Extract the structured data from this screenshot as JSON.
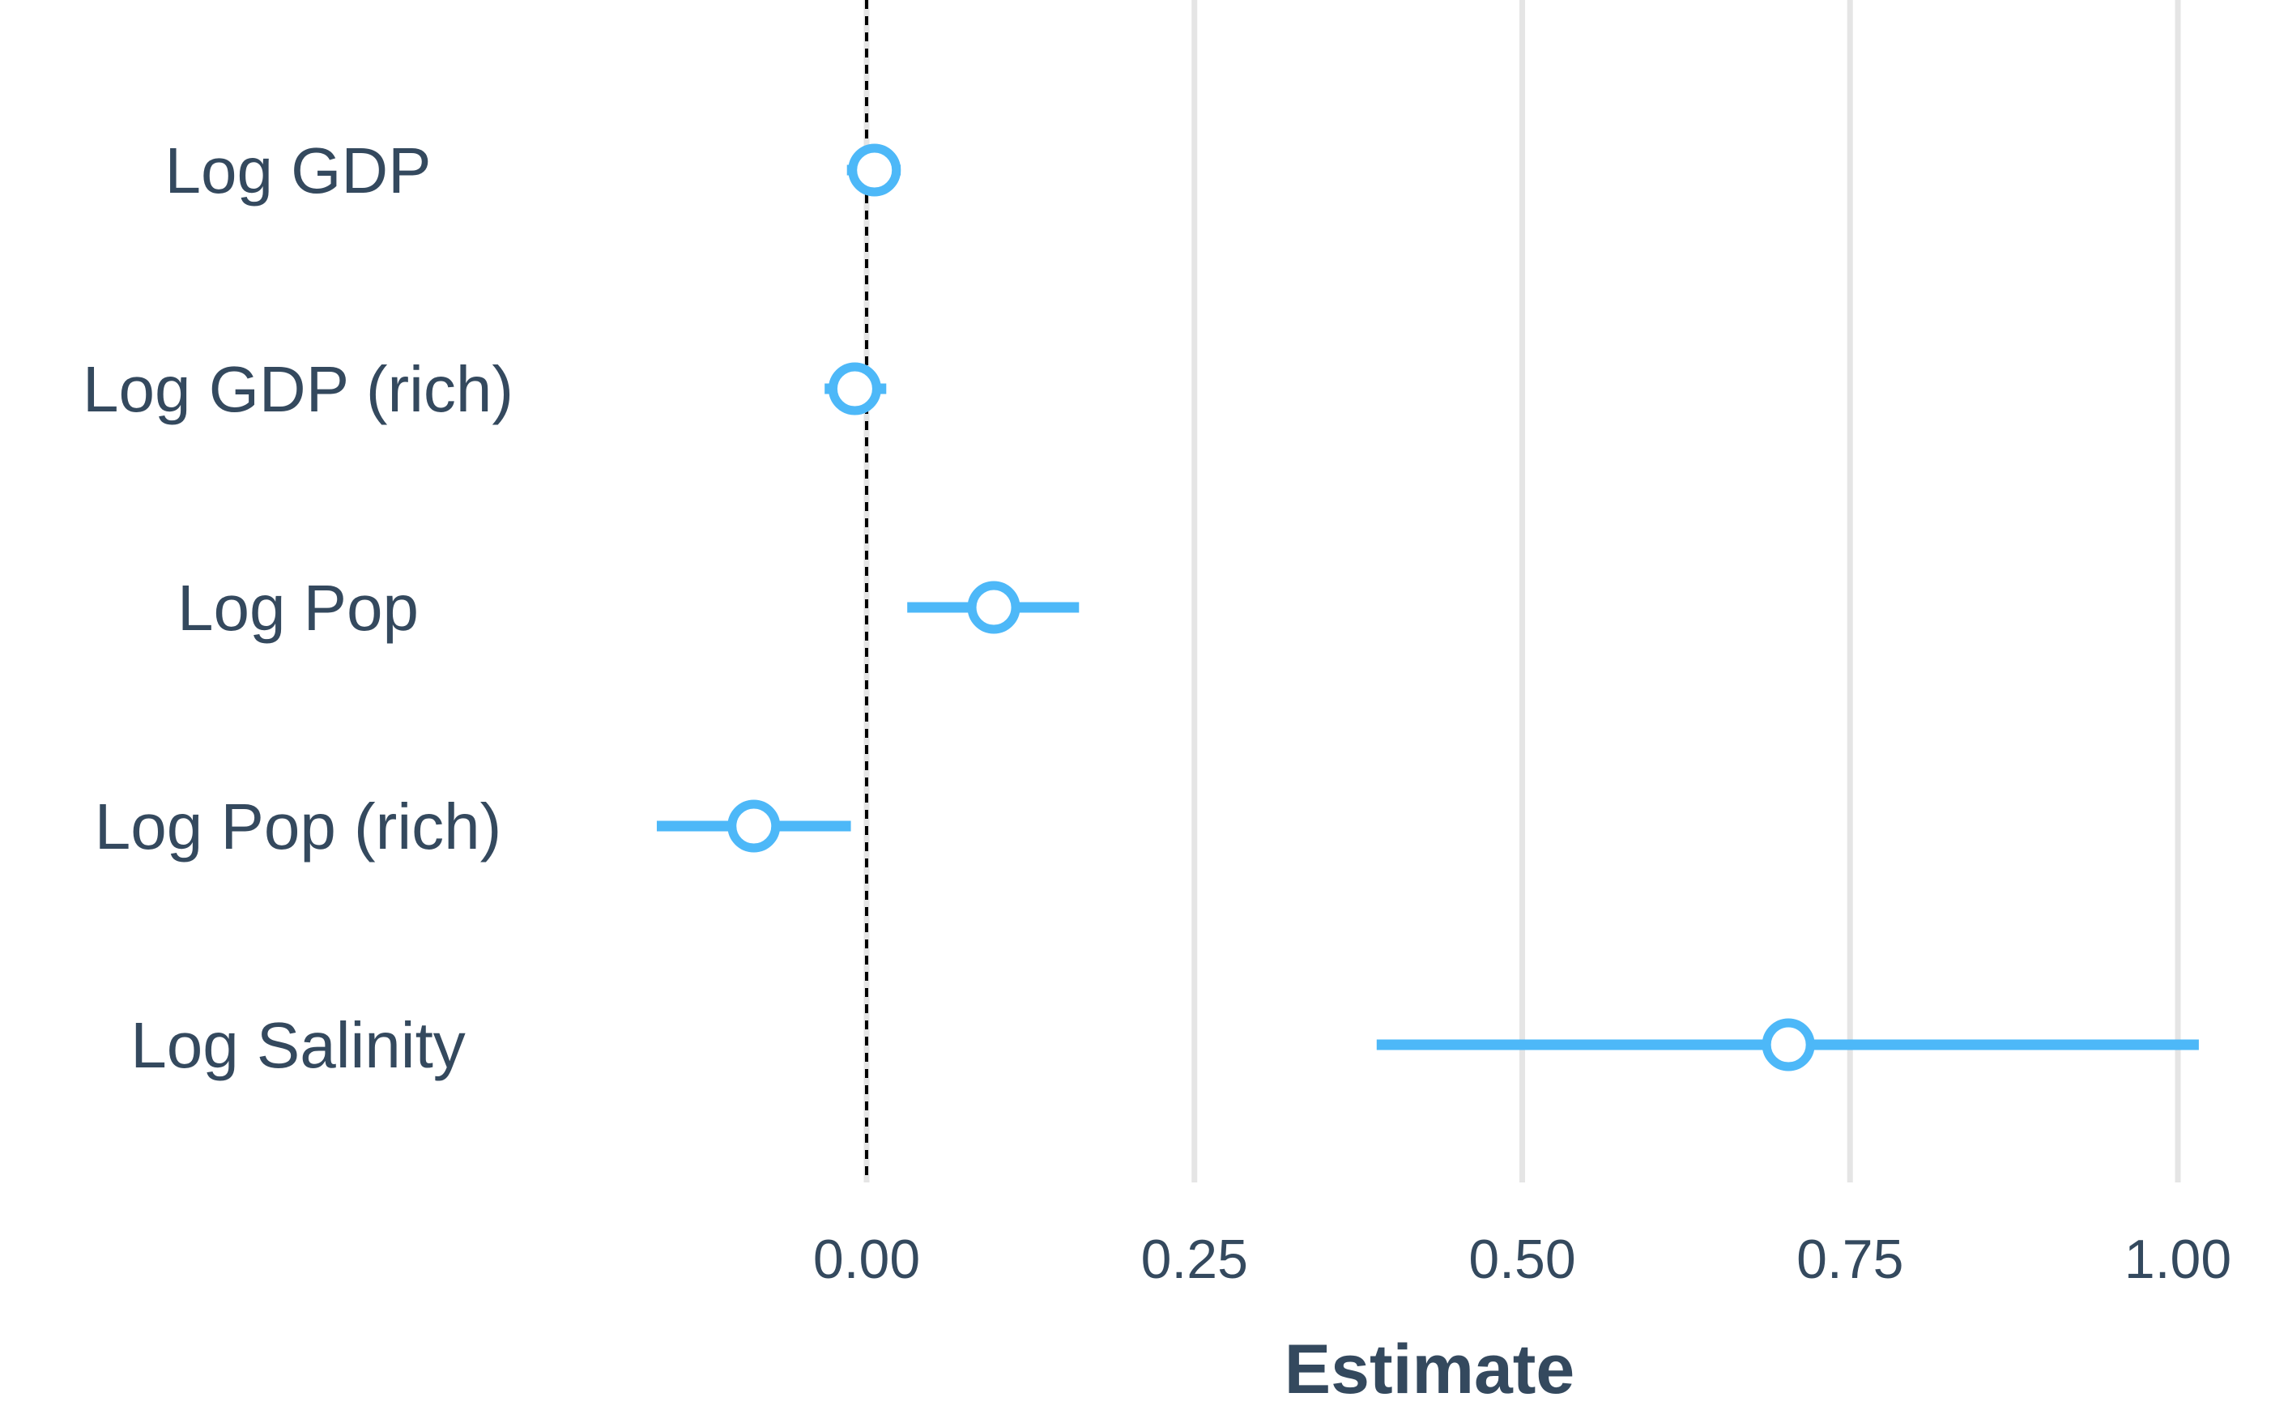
{
  "chart_data": {
    "type": "scatter",
    "subtype": "coefficient-plot",
    "title": "",
    "xlabel": "Estimate",
    "ylabel": "",
    "xlim": [
      -0.18,
      1.02
    ],
    "x_ticks": [
      0.0,
      0.25,
      0.5,
      0.75,
      1.0
    ],
    "x_tick_labels": [
      "0.00",
      "0.25",
      "0.50",
      "0.75",
      "1.00"
    ],
    "reference_line": {
      "x": 0.0,
      "style": "dashed",
      "color": "#000000"
    },
    "grid": {
      "vertical": true,
      "horizontal": false,
      "color": "#e5e5e5"
    },
    "legend": "none",
    "colors": {
      "point": "#4db8f8",
      "interval": "#4db8f8",
      "text": "#34495e"
    },
    "categories": [
      "Log GDP",
      "Log GDP (rich)",
      "Log Pop",
      "Log Pop (rich)",
      "Log Salinity"
    ],
    "estimates": [
      0.006,
      -0.009,
      0.097,
      -0.086,
      0.703
    ],
    "ci_low": [
      -0.015,
      -0.032,
      0.031,
      -0.16,
      0.389
    ],
    "ci_high": [
      0.026,
      0.015,
      0.162,
      -0.012,
      1.016
    ]
  }
}
